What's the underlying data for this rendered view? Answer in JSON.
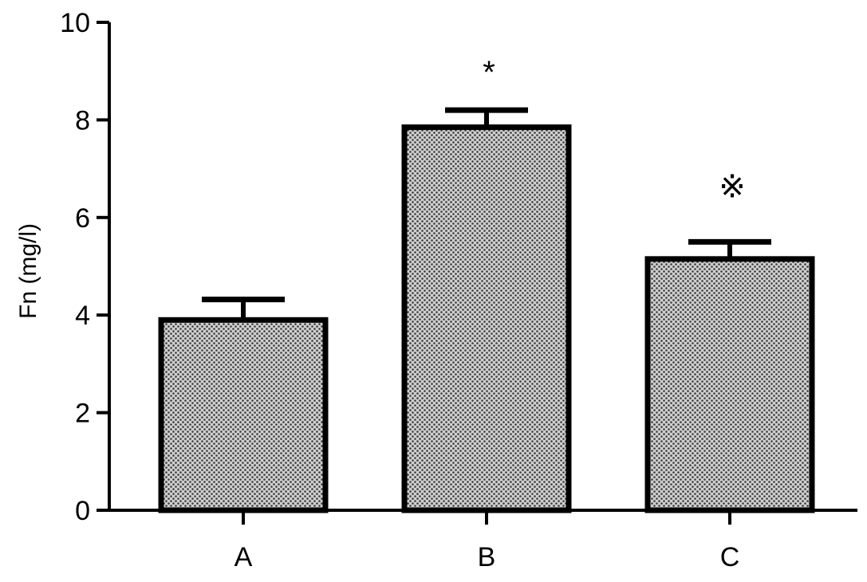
{
  "chart_data": {
    "type": "bar",
    "title": "",
    "xlabel": "",
    "ylabel": "Fn (mg/l)",
    "ylim": [
      0,
      10
    ],
    "yticks": [
      0,
      2,
      4,
      6,
      8,
      10
    ],
    "ytick_labels": [
      "0",
      "2",
      "4",
      "6",
      "8",
      "10"
    ],
    "categories": [
      "A",
      "B",
      "C"
    ],
    "values": [
      3.9,
      7.85,
      5.15
    ],
    "errors": [
      0.42,
      0.35,
      0.35
    ],
    "annotations": [
      "",
      "*",
      "※"
    ],
    "grid": false,
    "legend": "none",
    "bar_pattern": "dotted-grey",
    "colors": {
      "bar_fill": "#cfcfcf",
      "bar_dot": "#3a3a3a",
      "stroke": "#000000"
    }
  }
}
